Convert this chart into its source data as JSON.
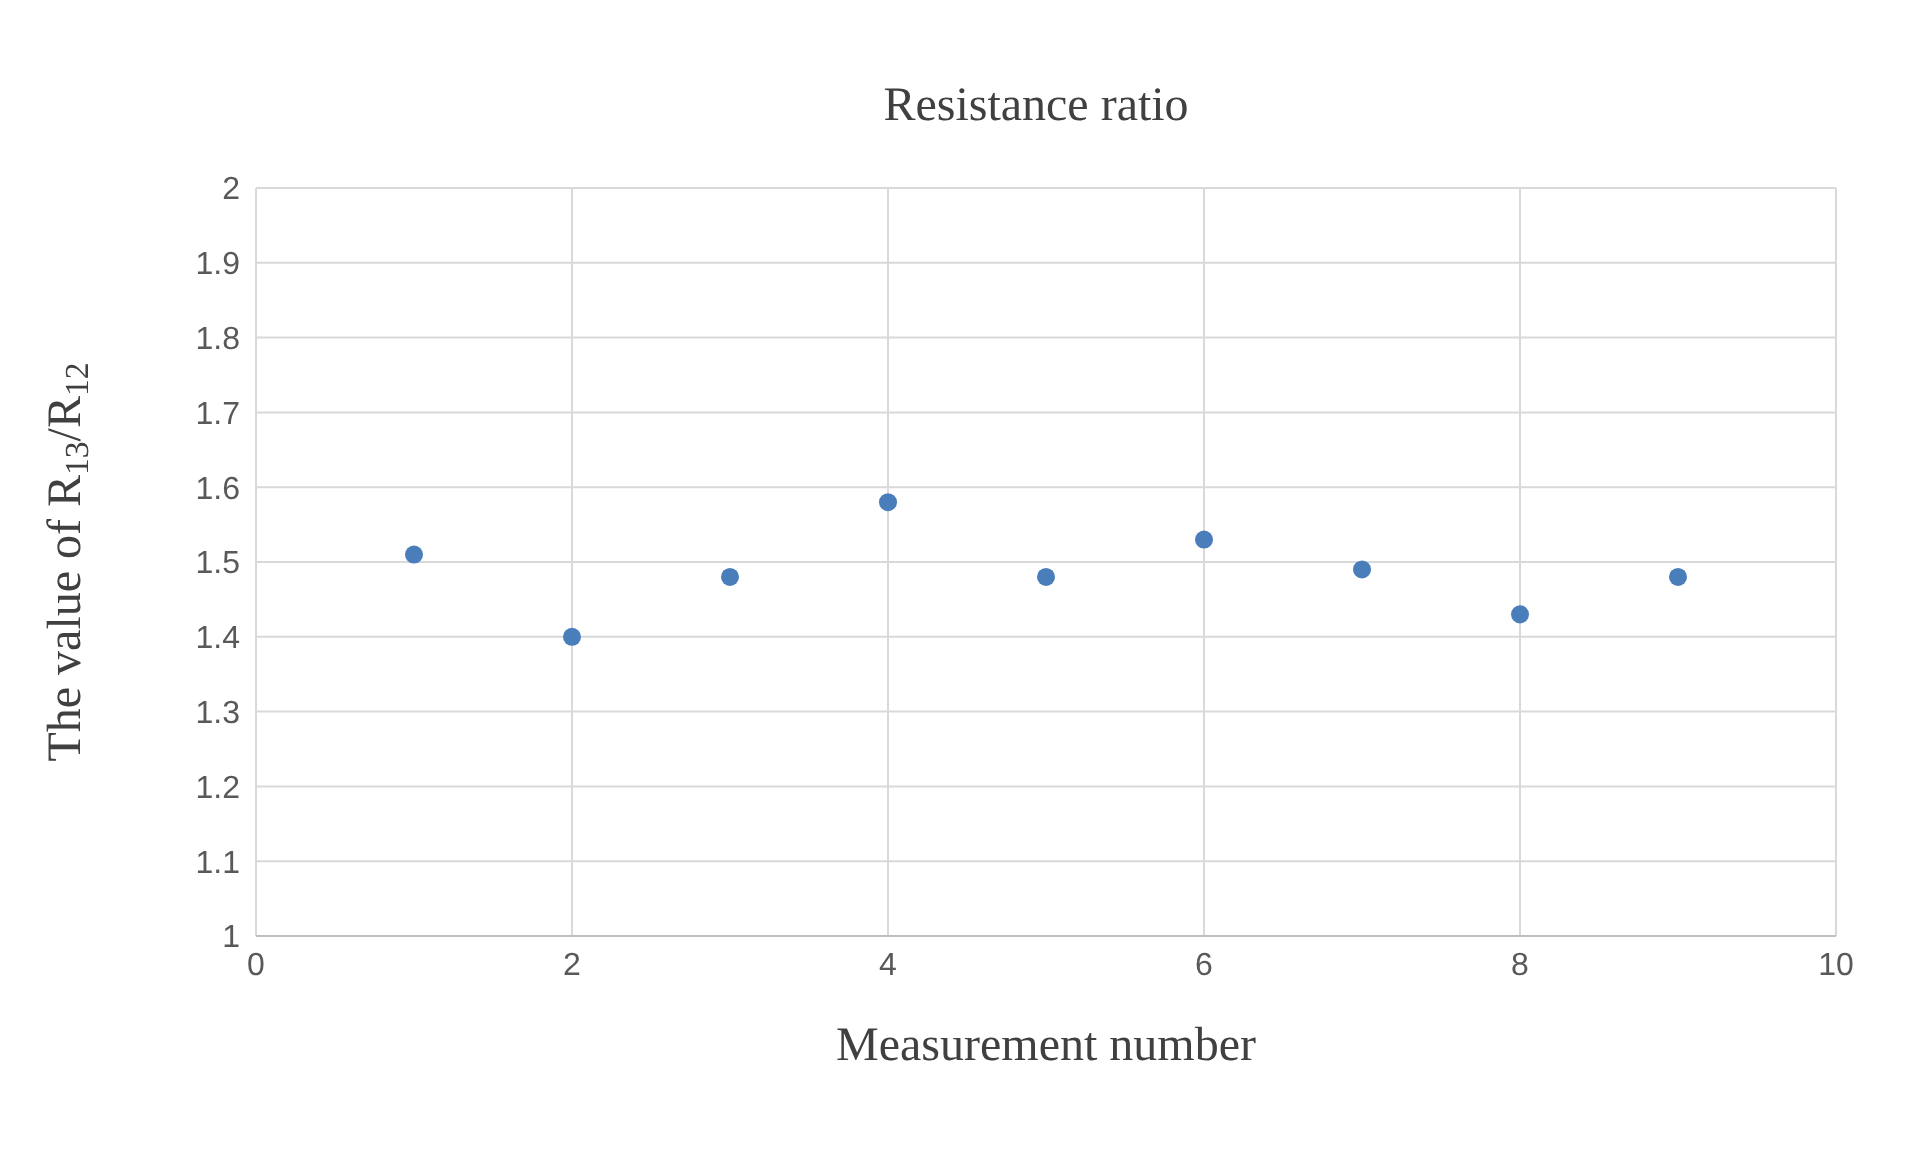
{
  "chart_data": {
    "type": "scatter",
    "title": "Resistance ratio",
    "xlabel": "Measurement number",
    "ylabel": "The value of R$_{13}$/R$_{12}$",
    "x": [
      1,
      2,
      3,
      4,
      5,
      6,
      7,
      8,
      9
    ],
    "series": [
      {
        "color": "#4a7ebb",
        "values": [
          1.51,
          1.4,
          1.48,
          1.58,
          1.48,
          1.53,
          1.49,
          1.43,
          1.48
        ]
      }
    ],
    "xlim": [
      0,
      10
    ],
    "xticks": [
      0,
      2,
      4,
      6,
      8,
      10
    ],
    "ylim": [
      1,
      2
    ],
    "yticks": [
      1,
      1.1,
      1.2,
      1.3,
      1.4,
      1.5,
      1.6,
      1.7,
      1.8,
      1.9,
      2
    ],
    "grid": true,
    "marker": "circle",
    "legend": false
  }
}
